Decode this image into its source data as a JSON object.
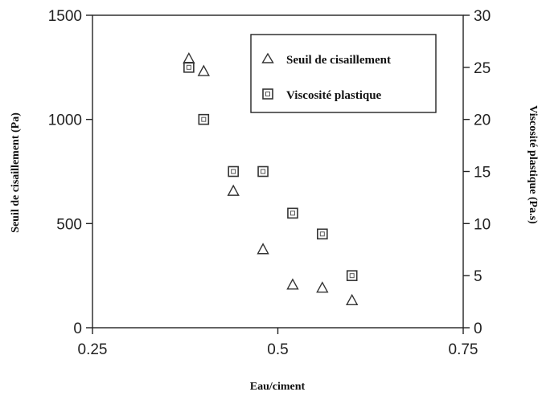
{
  "chart_data": {
    "type": "scatter",
    "xlabel": "Eau/ciment",
    "ylabel": "Seuil de cisaillement (Pa)",
    "y2label": "Viscosité plastique (Pa.s)",
    "xlim": [
      0.25,
      0.75
    ],
    "ylim": [
      0,
      1500
    ],
    "y2lim": [
      0,
      30
    ],
    "x_ticks": [
      "0.25",
      "0.5",
      "0.75"
    ],
    "x_tick_values": [
      0.25,
      0.5,
      0.75
    ],
    "y_ticks": [
      "0",
      "500",
      "1000",
      "1500"
    ],
    "y_tick_values": [
      0,
      500,
      1000,
      1500
    ],
    "y2_ticks": [
      "0",
      "5",
      "10",
      "15",
      "20",
      "25",
      "30"
    ],
    "y2_tick_values": [
      0,
      5,
      10,
      15,
      20,
      25,
      30
    ],
    "grid": false,
    "legend_position": "top-right",
    "series": [
      {
        "name": "Seuil de cisaillement",
        "marker": "triangle",
        "axis": "left",
        "x": [
          0.38,
          0.4,
          0.44,
          0.48,
          0.52,
          0.56,
          0.6
        ],
        "y": [
          1290,
          1230,
          655,
          375,
          205,
          190,
          130
        ]
      },
      {
        "name": "Viscosité plastique",
        "marker": "square",
        "axis": "right",
        "x": [
          0.38,
          0.4,
          0.44,
          0.48,
          0.52,
          0.56,
          0.6
        ],
        "y": [
          25,
          20,
          15,
          15,
          11,
          9,
          5
        ]
      }
    ]
  }
}
